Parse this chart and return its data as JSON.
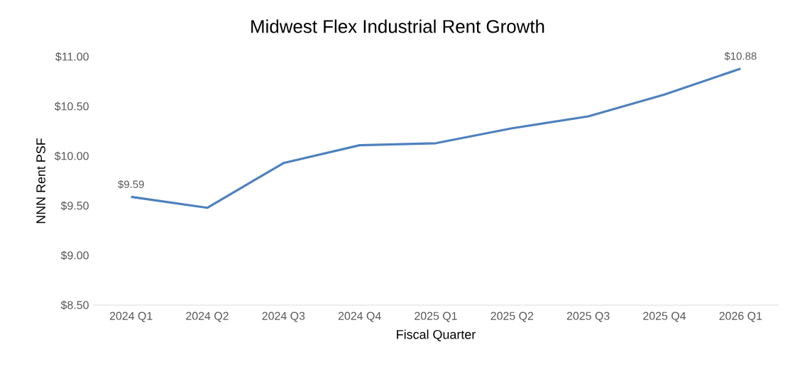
{
  "chart_data": {
    "type": "line",
    "title": "Midwest Flex Industrial Rent Growth",
    "xlabel": "Fiscal Quarter",
    "ylabel": "NNN Rent PSF",
    "categories": [
      "2024 Q1",
      "2024 Q2",
      "2024 Q3",
      "2024 Q4",
      "2025 Q1",
      "2025 Q2",
      "2025 Q3",
      "2025 Q4",
      "2026 Q1"
    ],
    "series": [
      {
        "color": "#4e81bd",
        "values": [
          9.59,
          9.48,
          9.93,
          10.11,
          10.13,
          10.28,
          10.4,
          10.62,
          10.88
        ],
        "value_labels": [
          "$9.59",
          null,
          null,
          null,
          null,
          null,
          null,
          null,
          "$10.88"
        ]
      }
    ],
    "ylim": [
      8.5,
      11.0
    ],
    "yticks": [
      {
        "value": 8.5,
        "label": "$8.50"
      },
      {
        "value": 9.0,
        "label": "$9.00"
      },
      {
        "value": 9.5,
        "label": "$9.50"
      },
      {
        "value": 10.0,
        "label": "$10.00"
      },
      {
        "value": 10.5,
        "label": "$10.50"
      },
      {
        "value": 11.0,
        "label": "$11.00"
      }
    ]
  }
}
